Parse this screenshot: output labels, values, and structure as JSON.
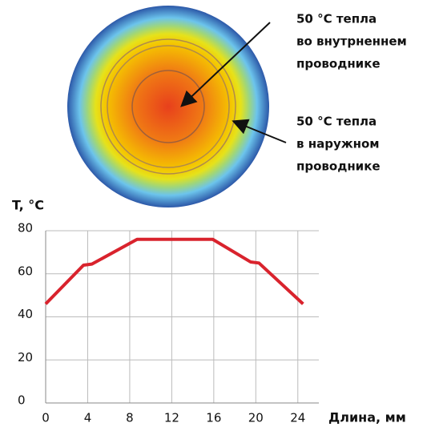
{
  "chart_data": {
    "type": "line",
    "annotations": [
      [
        "50 °C тепла",
        "во внутрненнем",
        "проводнике"
      ],
      [
        "50 °C тепла",
        "в наружном",
        "проводнике"
      ]
    ],
    "ylabel": "T, °C",
    "xlabel": "Длина, мм",
    "x": [
      0,
      3.6,
      4.4,
      8.7,
      15.9,
      19.5,
      20.3,
      24.5
    ],
    "series": [
      {
        "color": "#d9232d",
        "values": [
          46,
          64,
          64.5,
          76,
          76,
          65.5,
          65,
          46
        ]
      }
    ],
    "xlim": [
      0,
      26
    ],
    "xticks": [
      0,
      4,
      8,
      12,
      16,
      20,
      24
    ],
    "ylim": [
      0,
      80
    ],
    "yticks": [
      0,
      20,
      40,
      60,
      80
    ],
    "grid": true
  }
}
